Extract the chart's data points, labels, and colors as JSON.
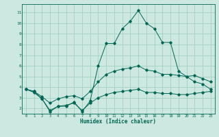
{
  "xlabel": "Humidex (Indice chaleur)",
  "bg_color": "#cce8e0",
  "grid_color": "#99ccbb",
  "line_color": "#006655",
  "xlim": [
    -0.5,
    23.5
  ],
  "ylim": [
    1.5,
    11.8
  ],
  "xticks": [
    0,
    1,
    2,
    3,
    4,
    5,
    6,
    7,
    8,
    9,
    10,
    11,
    12,
    13,
    14,
    15,
    16,
    17,
    18,
    19,
    20,
    21,
    22,
    23
  ],
  "yticks": [
    2,
    3,
    4,
    5,
    6,
    7,
    8,
    9,
    10,
    11
  ],
  "line_max": [
    3.8,
    3.6,
    2.9,
    1.7,
    2.2,
    2.2,
    2.6,
    1.7,
    2.7,
    6.0,
    8.1,
    8.1,
    9.5,
    10.2,
    11.2,
    10.0,
    9.5,
    8.2,
    8.2,
    5.5,
    5.0,
    4.5,
    4.3,
    3.8
  ],
  "line_mean": [
    3.8,
    3.6,
    3.1,
    2.5,
    2.9,
    3.1,
    3.2,
    2.9,
    3.6,
    4.5,
    5.2,
    5.5,
    5.7,
    5.8,
    6.0,
    5.6,
    5.5,
    5.2,
    5.2,
    5.1,
    5.0,
    5.1,
    4.8,
    4.5
  ],
  "line_min": [
    3.8,
    3.5,
    2.9,
    1.8,
    2.2,
    2.3,
    2.5,
    1.8,
    2.5,
    3.0,
    3.3,
    3.5,
    3.6,
    3.7,
    3.8,
    3.5,
    3.5,
    3.4,
    3.4,
    3.3,
    3.3,
    3.4,
    3.5,
    3.6
  ]
}
